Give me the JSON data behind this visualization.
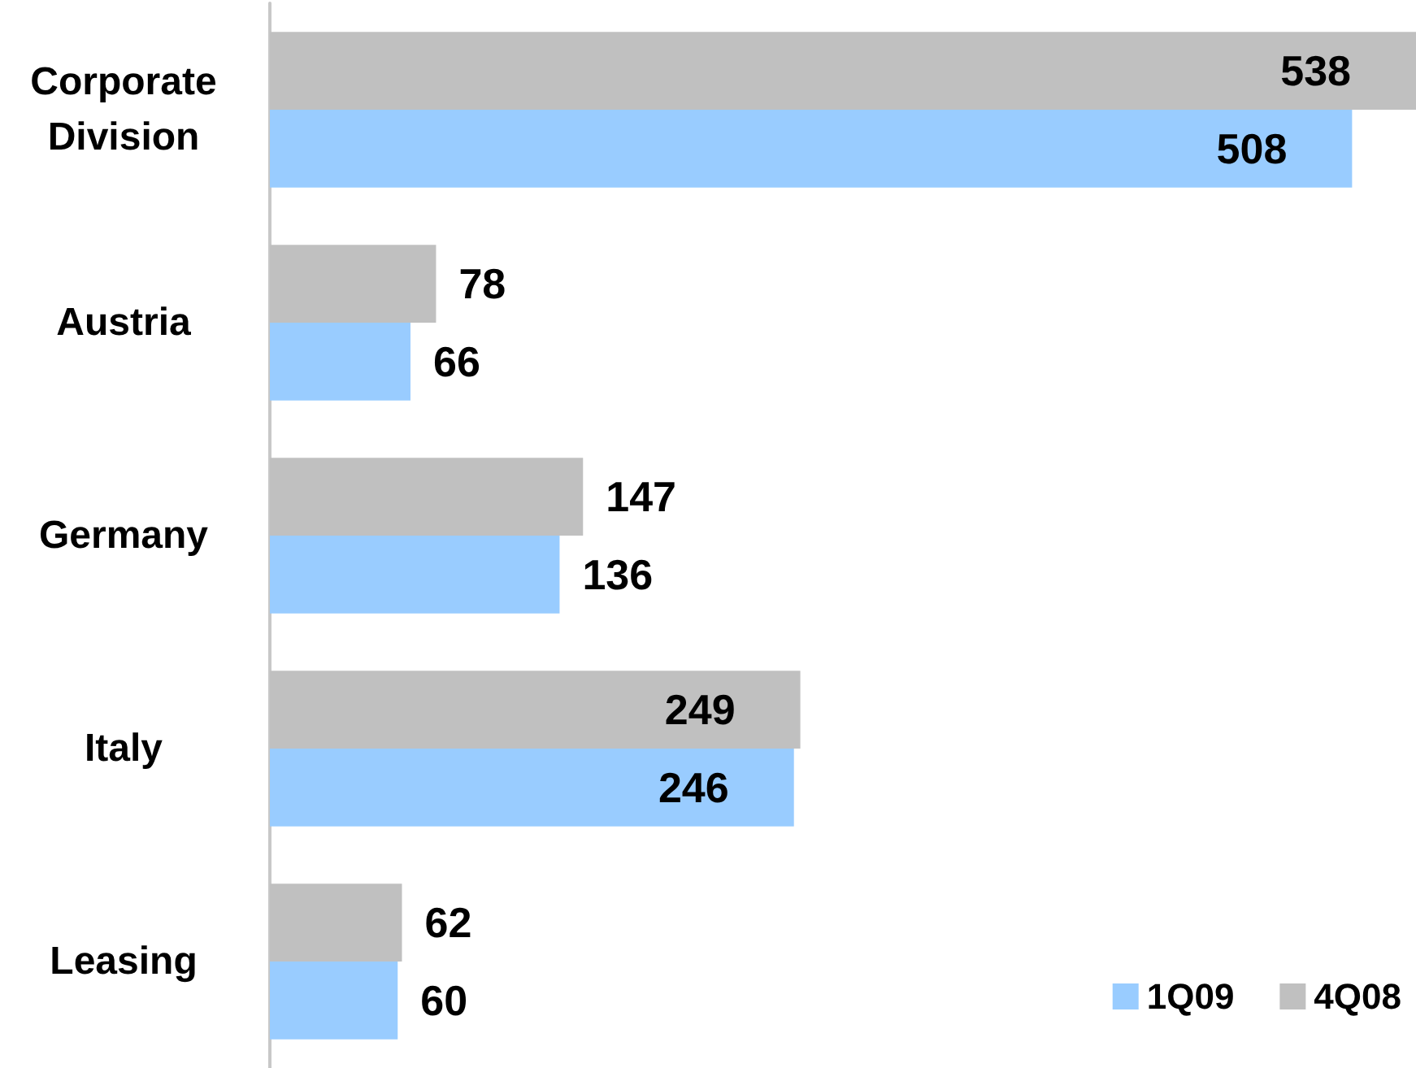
{
  "chart_data": {
    "type": "bar",
    "orientation": "horizontal",
    "categories": [
      "Corporate\nDivision",
      "Austria",
      "Germany",
      "Italy",
      "Leasing"
    ],
    "series": [
      {
        "name": "1Q09",
        "color": "#99ccff",
        "values": [
          508,
          66,
          136,
          246,
          60
        ]
      },
      {
        "name": "4Q08",
        "color": "#c0c0c0",
        "values": [
          538,
          78,
          147,
          249,
          62
        ]
      }
    ],
    "xlim": [
      0,
      538
    ],
    "data_labels": true,
    "legend": "bottom right",
    "tick_labels": "y"
  }
}
